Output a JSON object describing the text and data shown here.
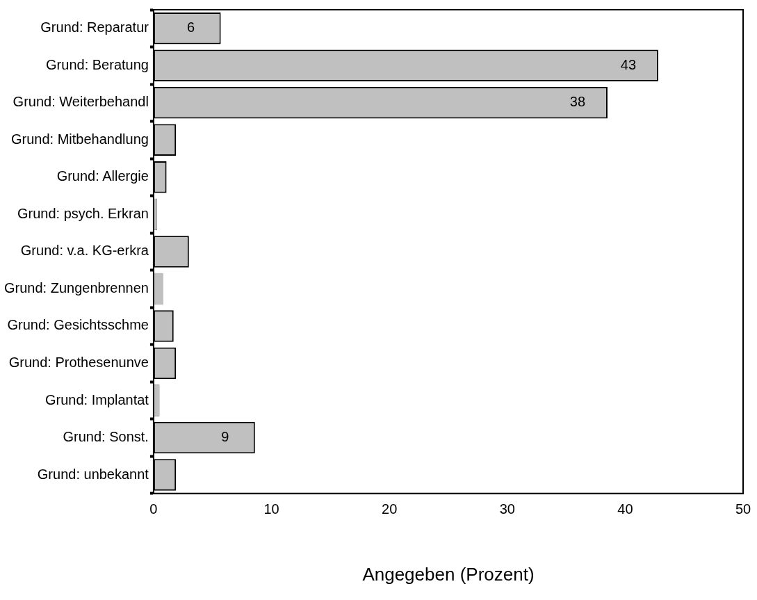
{
  "chart_data": {
    "type": "bar",
    "orientation": "horizontal",
    "xlabel": "Angegeben (Prozent)",
    "categories": [
      "Grund: Reparatur",
      "Grund: Beratung",
      "Grund: Weiterbehandl",
      "Grund: Mitbehandlung",
      "Grund: Allergie",
      "Grund: psych. Erkran",
      "Grund: v.a. KG-erkra",
      "Grund: Zungenbrennen",
      "Grund: Gesichtsschme",
      "Grund: Prothesenunve",
      "Grund: Implantat",
      "Grund: Sonst.",
      "Grund: unbekannt"
    ],
    "values": [
      5.7,
      42.8,
      38.5,
      1.9,
      1.1,
      0.3,
      3.0,
      0.8,
      1.7,
      1.9,
      0.5,
      8.6,
      1.9
    ],
    "value_labels": [
      "6",
      "43",
      "38",
      null,
      null,
      null,
      null,
      null,
      null,
      null,
      null,
      "9",
      null
    ],
    "color": "#c0c0c0",
    "xlim": [
      0,
      50
    ],
    "xticks": [
      0,
      10,
      20,
      30,
      40,
      50
    ],
    "grid": false,
    "legend": false
  }
}
